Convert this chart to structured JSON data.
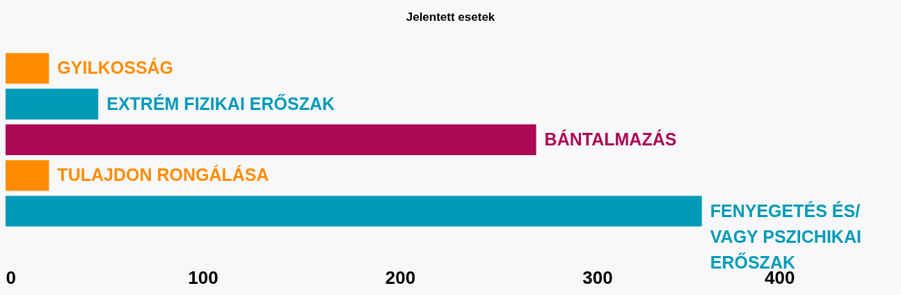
{
  "chart_data": {
    "type": "bar",
    "orientation": "horizontal",
    "title": "Jelentett esetek",
    "categories": [
      "GYILKOSSÁG",
      "EXTRÉM FIZIKAI ERŐSZAK",
      "BÁNTALMAZÁS",
      "TULAJDON RONGÁLÁSA",
      "FENYEGETÉS ÉS/ VAGY PSZICHIKAI ERŐSZAK"
    ],
    "values": [
      22,
      47,
      269,
      22,
      353
    ],
    "colors": [
      "#ff8c00",
      "#009ab8",
      "#ac0853",
      "#ff8c00",
      "#009ab8"
    ],
    "xlim": [
      0,
      400
    ],
    "xticks": [
      0,
      100,
      200,
      300,
      400
    ],
    "grid": false
  }
}
